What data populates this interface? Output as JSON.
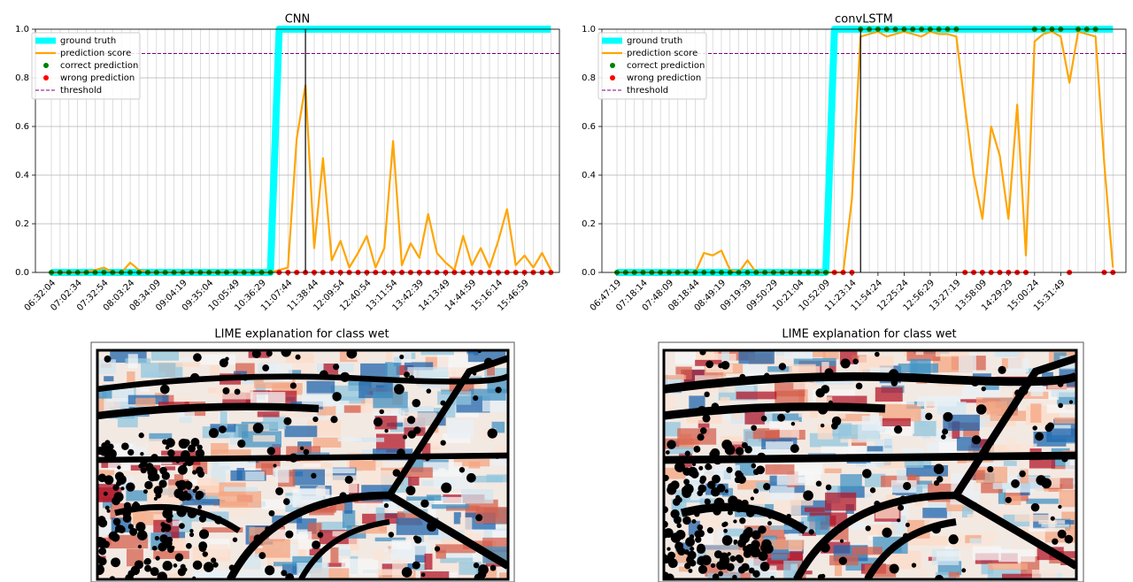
{
  "chart_data": [
    {
      "type": "line",
      "title": "CNN",
      "categories": [
        "06:32:04",
        null,
        null,
        "07:02:34",
        null,
        null,
        "07:32:54",
        null,
        null,
        "08:03:24",
        null,
        null,
        "08:34:09",
        null,
        null,
        "09:04:19",
        null,
        null,
        "09:35:04",
        null,
        null,
        "10:05:49",
        null,
        null,
        "10:36:29",
        null,
        null,
        "11:07:44",
        null,
        null,
        "11:38:44",
        null,
        null,
        "12:09:54",
        null,
        null,
        "12:40:54",
        null,
        null,
        "13:11:54",
        null,
        null,
        "13:42:39",
        null,
        null,
        "14:13:49",
        null,
        null,
        "14:44:59",
        null,
        null,
        "15:16:14",
        null,
        null,
        "15:46:59",
        null,
        null,
        null
      ],
      "series": [
        {
          "name": "ground truth",
          "color": "#00ffff",
          "kind": "thick-line",
          "values": [
            0,
            0,
            0,
            0,
            0,
            0,
            0,
            0,
            0,
            0,
            0,
            0,
            0,
            0,
            0,
            0,
            0,
            0,
            0,
            0,
            0,
            0,
            0,
            0,
            0,
            0,
            1,
            1,
            1,
            1,
            1,
            1,
            1,
            1,
            1,
            1,
            1,
            1,
            1,
            1,
            1,
            1,
            1,
            1,
            1,
            1,
            1,
            1,
            1,
            1,
            1,
            1,
            1,
            1,
            1,
            1,
            1,
            1
          ]
        },
        {
          "name": "prediction score",
          "color": "#ffa500",
          "kind": "line",
          "values": [
            0,
            0,
            0,
            0,
            0,
            0.01,
            0.02,
            0,
            0,
            0.04,
            0.01,
            0,
            0,
            0,
            0,
            0,
            0,
            0,
            0,
            0,
            0,
            0,
            0,
            0,
            0,
            0,
            0.01,
            0.02,
            0.55,
            0.77,
            0.1,
            0.47,
            0.05,
            0.13,
            0.02,
            0.08,
            0.15,
            0.02,
            0.1,
            0.54,
            0.03,
            0.12,
            0.06,
            0.24,
            0.08,
            0.04,
            0.01,
            0.15,
            0.03,
            0.1,
            0.02,
            0.13,
            0.26,
            0.03,
            0.07,
            0.02,
            0.08,
            0.01
          ]
        },
        {
          "name": "correct prediction",
          "color": "#008000",
          "kind": "points",
          "values": [
            0,
            0,
            0,
            0,
            0,
            0,
            0,
            0,
            0,
            0,
            0,
            0,
            0,
            0,
            0,
            0,
            0,
            0,
            0,
            0,
            0,
            0,
            0,
            0,
            0,
            0,
            null,
            null,
            null,
            null,
            null,
            null,
            null,
            null,
            null,
            null,
            null,
            null,
            null,
            null,
            null,
            null,
            null,
            null,
            null,
            null,
            null,
            null,
            null,
            null,
            null,
            null,
            null,
            null,
            null,
            null,
            null,
            null
          ]
        },
        {
          "name": "wrong prediction",
          "color": "#ff0000",
          "kind": "points",
          "values": [
            null,
            null,
            null,
            null,
            null,
            null,
            null,
            null,
            null,
            null,
            null,
            null,
            null,
            null,
            null,
            null,
            null,
            null,
            null,
            null,
            null,
            null,
            null,
            null,
            null,
            null,
            0,
            0,
            0,
            0,
            0,
            0,
            0,
            0,
            0,
            0,
            0,
            0,
            0,
            0,
            0,
            0,
            0,
            0,
            0,
            0,
            0,
            0,
            0,
            0,
            0,
            0,
            0,
            0,
            0,
            0,
            0,
            0
          ]
        }
      ],
      "threshold": {
        "name": "threshold",
        "value": 0.9,
        "color": "#800080"
      },
      "vline": 29,
      "ylim": [
        0,
        1
      ],
      "yticks": [
        {
          "value": 0,
          "label": "0.0"
        },
        0.2,
        0.4,
        0.6,
        0.8,
        {
          "value": 1,
          "label": "1.0"
        }
      ],
      "grid": true,
      "legend": "upper left"
    },
    {
      "type": "line",
      "title": "convLSTM",
      "categories": [
        "06:47:19",
        null,
        null,
        "07:18:14",
        null,
        null,
        "07:48:09",
        null,
        null,
        "08:18:44",
        null,
        null,
        "08:49:19",
        null,
        null,
        "09:19:39",
        null,
        null,
        "09:50:29",
        null,
        null,
        "10:21:04",
        null,
        null,
        "10:52:09",
        null,
        null,
        "11:23:14",
        null,
        null,
        "11:54:24",
        null,
        null,
        "12:25:24",
        null,
        null,
        "12:56:29",
        null,
        null,
        "13:27:19",
        null,
        null,
        "13:58:09",
        null,
        null,
        "14:29:29",
        null,
        null,
        "15:00:24",
        null,
        null,
        "15:31:49",
        null,
        null,
        null,
        null,
        null,
        null
      ],
      "series": [
        {
          "name": "ground truth",
          "color": "#00ffff",
          "kind": "thick-line",
          "values": [
            0,
            0,
            0,
            0,
            0,
            0,
            0,
            0,
            0,
            0,
            0,
            0,
            0,
            0,
            0,
            0,
            0,
            0,
            0,
            0,
            0,
            0,
            0,
            0,
            0,
            1,
            1,
            1,
            1,
            1,
            1,
            1,
            1,
            1,
            1,
            1,
            1,
            1,
            1,
            1,
            1,
            1,
            1,
            1,
            1,
            1,
            1,
            1,
            1,
            1,
            1,
            1,
            1,
            1,
            1,
            1,
            1,
            1
          ]
        },
        {
          "name": "prediction score",
          "color": "#ffa500",
          "kind": "line",
          "values": [
            0,
            0,
            0,
            0,
            0,
            0,
            0,
            0,
            0,
            0,
            0.08,
            0.07,
            0.09,
            0.01,
            0,
            0.05,
            0,
            0,
            0,
            0,
            0,
            0,
            0,
            0,
            0,
            0,
            0,
            0.3,
            0.97,
            0.98,
            0.99,
            0.97,
            0.98,
            0.99,
            0.98,
            0.97,
            0.99,
            0.98,
            0.98,
            0.97,
            0.68,
            0.4,
            0.22,
            0.6,
            0.48,
            0.22,
            0.69,
            0.07,
            0.95,
            0.98,
            0.99,
            0.97,
            0.78,
            0.99,
            0.98,
            0.97,
            0.45,
            0.02
          ]
        },
        {
          "name": "correct prediction",
          "color": "#008000",
          "kind": "points",
          "values": [
            0,
            0,
            0,
            0,
            0,
            0,
            0,
            0,
            0,
            0,
            0,
            0,
            0,
            0,
            0,
            0,
            0,
            0,
            0,
            0,
            0,
            0,
            0,
            0,
            0,
            null,
            null,
            null,
            1,
            1,
            1,
            1,
            1,
            1,
            1,
            1,
            1,
            1,
            1,
            1,
            null,
            null,
            null,
            null,
            null,
            null,
            null,
            null,
            1,
            1,
            1,
            1,
            null,
            1,
            1,
            1,
            null,
            null
          ]
        },
        {
          "name": "wrong prediction",
          "color": "#ff0000",
          "kind": "points",
          "values": [
            null,
            null,
            null,
            null,
            null,
            null,
            null,
            null,
            null,
            null,
            null,
            null,
            null,
            null,
            null,
            null,
            null,
            null,
            null,
            null,
            null,
            null,
            null,
            null,
            null,
            0,
            0,
            0,
            null,
            null,
            null,
            null,
            null,
            null,
            null,
            null,
            null,
            null,
            null,
            null,
            0,
            0,
            0,
            0,
            0,
            0,
            0,
            0,
            null,
            null,
            null,
            null,
            0,
            null,
            null,
            null,
            0,
            0
          ]
        }
      ],
      "threshold": {
        "name": "threshold",
        "value": 0.9,
        "color": "#800080"
      },
      "vline": 28,
      "ylim": [
        0,
        1
      ],
      "yticks": [
        {
          "value": 0,
          "label": "0.0"
        },
        0.2,
        0.4,
        0.6,
        0.8,
        {
          "value": 1,
          "label": "1.0"
        }
      ],
      "grid": true,
      "legend": "upper left"
    }
  ],
  "images": [
    {
      "title": "LIME explanation for class wet"
    },
    {
      "title": "LIME explanation for class wet"
    }
  ]
}
